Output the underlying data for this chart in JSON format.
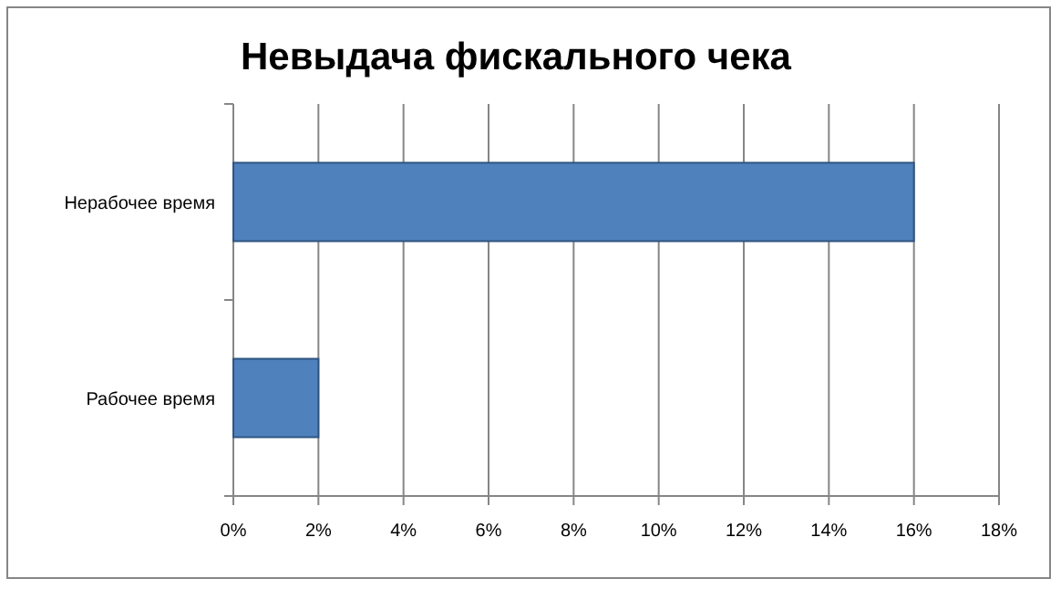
{
  "chart_data": {
    "type": "bar",
    "orientation": "horizontal",
    "title": "Невыдача фискального чека",
    "categories": [
      "Нерабочее время",
      "Рабочее время"
    ],
    "values": [
      16,
      2
    ],
    "color": "#4f81bd",
    "xlim": [
      0,
      18
    ],
    "xticks": [
      {
        "value": 0,
        "label": "0%"
      },
      {
        "value": 2,
        "label": "2%"
      },
      {
        "value": 4,
        "label": "4%"
      },
      {
        "value": 6,
        "label": "6%"
      },
      {
        "value": 8,
        "label": "8%"
      },
      {
        "value": 10,
        "label": "10%"
      },
      {
        "value": 12,
        "label": "12%"
      },
      {
        "value": 14,
        "label": "14%"
      },
      {
        "value": 16,
        "label": "16%"
      },
      {
        "value": 18,
        "label": "18%"
      }
    ],
    "grid": "x"
  }
}
